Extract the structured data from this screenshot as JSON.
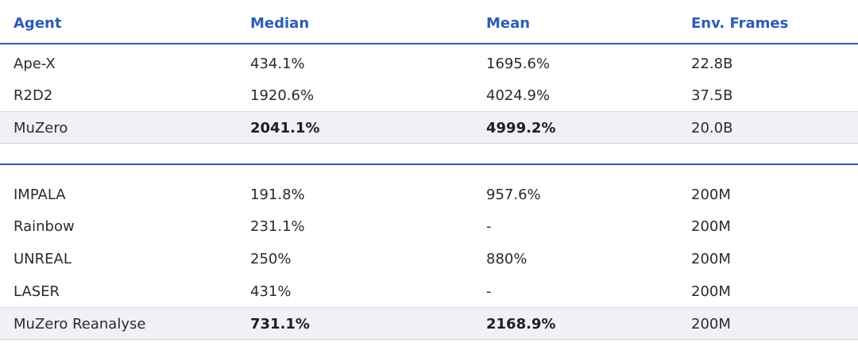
{
  "columns": [
    "Agent",
    "Median",
    "Mean",
    "Env. Frames"
  ],
  "group1": [
    {
      "agent": "Ape-X",
      "median": "434.1%",
      "mean": "1695.6%",
      "frames": "22.8B"
    },
    {
      "agent": "R2D2",
      "median": "1920.6%",
      "mean": "4024.9%",
      "frames": "37.5B"
    },
    {
      "agent": "MuZero",
      "median": "2041.1%",
      "mean": "4999.2%",
      "frames": "20.0B"
    }
  ],
  "group2": [
    {
      "agent": "IMPALA",
      "median": "191.8%",
      "mean": "957.6%",
      "frames": "200M"
    },
    {
      "agent": "Rainbow",
      "median": "231.1%",
      "mean": "-",
      "frames": "200M"
    },
    {
      "agent": "UNREAL",
      "median": "250%",
      "mean": "880%",
      "frames": "200M"
    },
    {
      "agent": "LASER",
      "median": "431%",
      "mean": "-",
      "frames": "200M"
    },
    {
      "agent": "MuZero Reanalyse",
      "median": "731.1%",
      "mean": "2168.9%",
      "frames": "200M"
    }
  ],
  "colors": {
    "accent": "#2e5bb8",
    "highlight_bg": "#eff1f4"
  }
}
